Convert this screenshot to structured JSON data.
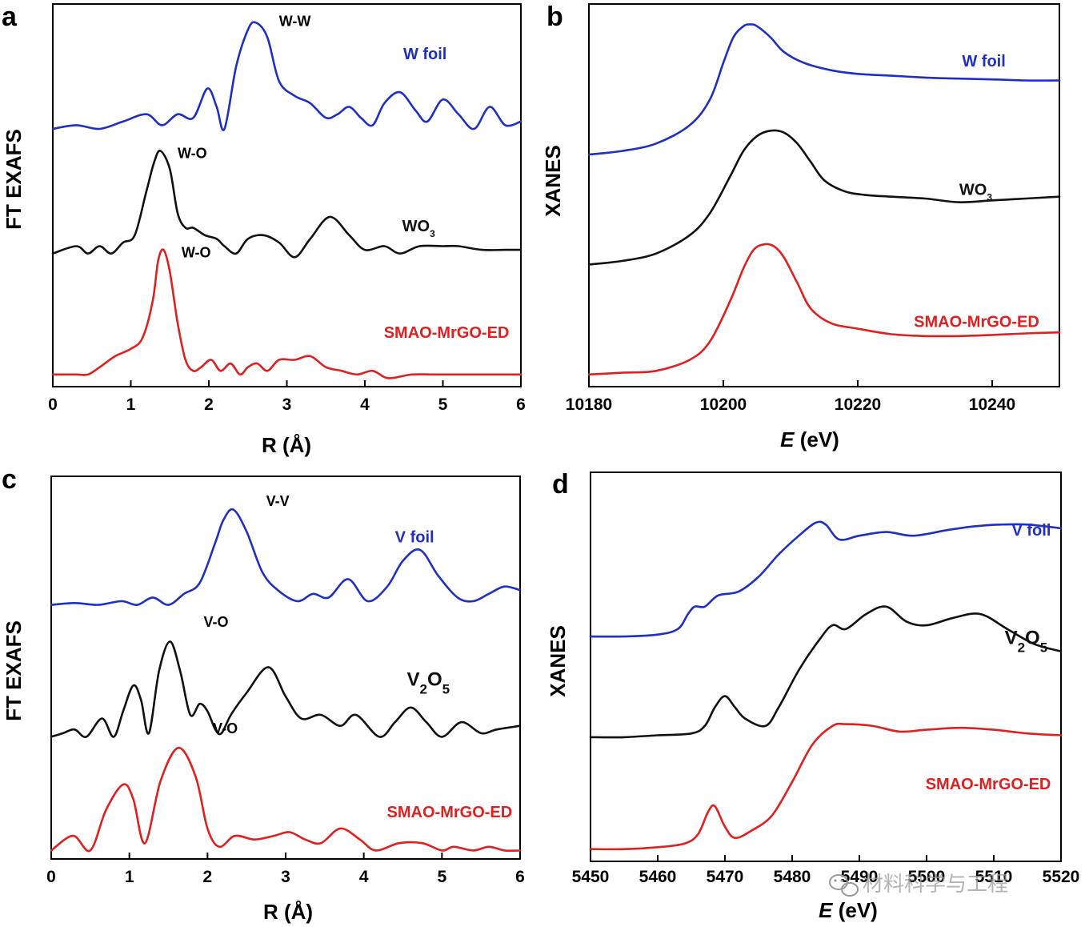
{
  "colors": {
    "blue": "#1f2fc4",
    "black": "#111111",
    "red": "#e02020",
    "axis": "#000000"
  },
  "watermark": {
    "icon": "wechat-icon",
    "text": "材料科学与工程"
  },
  "chart_data": [
    {
      "panel": "a",
      "type": "line",
      "ylabel": "FT EXAFS",
      "xlabel": "R (Å)",
      "xlabel_main": "R (",
      "xlabel_unit": "Å",
      "xlabel_close": ")",
      "xlim": [
        0,
        6
      ],
      "xticks": [
        0,
        1,
        2,
        3,
        4,
        5,
        6
      ],
      "xtick_labels": [
        "0",
        "1",
        "2",
        "3",
        "4",
        "5",
        "6"
      ],
      "y_units": "arbitrary (stacked, offset)",
      "series": [
        {
          "name": "W foil",
          "label": "W foil",
          "color": "#1f2fc4",
          "label_x": 5.05,
          "label_y": 0.88,
          "x": [
            0,
            0.3,
            0.6,
            0.9,
            1.2,
            1.4,
            1.6,
            1.8,
            1.98,
            2.1,
            2.2,
            2.35,
            2.5,
            2.6,
            2.75,
            2.9,
            3.1,
            3.3,
            3.5,
            3.65,
            3.8,
            3.95,
            4.1,
            4.25,
            4.45,
            4.65,
            4.8,
            5.0,
            5.2,
            5.4,
            5.6,
            5.8,
            6.0
          ],
          "y": [
            0.69,
            0.7,
            0.69,
            0.71,
            0.73,
            0.7,
            0.73,
            0.72,
            0.8,
            0.75,
            0.69,
            0.86,
            0.96,
            0.98,
            0.94,
            0.82,
            0.78,
            0.76,
            0.72,
            0.73,
            0.75,
            0.72,
            0.7,
            0.76,
            0.79,
            0.74,
            0.71,
            0.77,
            0.73,
            0.69,
            0.75,
            0.7,
            0.71
          ]
        },
        {
          "name": "WO3",
          "label": "WO",
          "label_sub": "3",
          "color": "#111111",
          "label_x": 4.9,
          "label_y": 0.41,
          "x": [
            0,
            0.3,
            0.45,
            0.6,
            0.75,
            0.9,
            1.05,
            1.2,
            1.3,
            1.38,
            1.5,
            1.6,
            1.7,
            1.8,
            1.95,
            2.1,
            2.2,
            2.35,
            2.5,
            2.7,
            2.9,
            3.1,
            3.3,
            3.55,
            3.8,
            4.0,
            4.25,
            4.45,
            4.7,
            5.0,
            5.2,
            5.5,
            5.8,
            6.0
          ],
          "y": [
            0.35,
            0.37,
            0.35,
            0.37,
            0.35,
            0.38,
            0.4,
            0.52,
            0.6,
            0.63,
            0.58,
            0.46,
            0.42,
            0.42,
            0.4,
            0.39,
            0.37,
            0.35,
            0.39,
            0.4,
            0.38,
            0.34,
            0.39,
            0.45,
            0.4,
            0.36,
            0.37,
            0.35,
            0.37,
            0.37,
            0.37,
            0.36,
            0.36,
            0.36
          ]
        },
        {
          "name": "SMAO-MrGO-ED",
          "label": "SMAO-MrGO-ED",
          "color": "#e02020",
          "label_x": 5.85,
          "label_y": 0.12,
          "x": [
            0,
            0.3,
            0.45,
            0.6,
            0.8,
            1.0,
            1.15,
            1.28,
            1.35,
            1.42,
            1.5,
            1.6,
            1.7,
            1.8,
            1.9,
            2.03,
            2.15,
            2.28,
            2.4,
            2.5,
            2.62,
            2.75,
            2.9,
            3.1,
            3.3,
            3.5,
            3.7,
            3.9,
            4.1,
            4.3,
            4.6,
            4.9,
            5.2,
            5.5,
            5.8,
            6.0
          ],
          "y": [
            0.02,
            0.02,
            0.02,
            0.04,
            0.07,
            0.09,
            0.12,
            0.22,
            0.33,
            0.36,
            0.3,
            0.16,
            0.06,
            0.03,
            0.04,
            0.06,
            0.03,
            0.05,
            0.02,
            0.04,
            0.05,
            0.03,
            0.06,
            0.06,
            0.07,
            0.04,
            0.03,
            0.02,
            0.03,
            0.01,
            0.02,
            0.02,
            0.02,
            0.02,
            0.02,
            0.02
          ]
        }
      ],
      "annotations": [
        {
          "text": "W-W",
          "x": 2.9,
          "y": 0.97
        },
        {
          "text": "W-O",
          "x": 1.6,
          "y": 0.61
        },
        {
          "text": "W-O",
          "x": 1.65,
          "y": 0.34
        }
      ]
    },
    {
      "panel": "b",
      "type": "line",
      "ylabel": "XANES",
      "xlabel": "E (eV)",
      "xlabel_main": "E",
      "xlabel_unit": " (eV)",
      "xlim": [
        10180,
        10250
      ],
      "xticks": [
        10180,
        10200,
        10220,
        10240
      ],
      "xtick_labels": [
        "10180",
        "10200",
        "10220",
        "10240"
      ],
      "y_units": "arbitrary (stacked, offset)",
      "series": [
        {
          "name": "W foil",
          "label": "W foil",
          "color": "#1f2fc4",
          "label_x": 10242,
          "label_y": 0.86,
          "x": [
            10180,
            10185,
            10190,
            10195,
            10198,
            10200,
            10201.5,
            10203,
            10204,
            10205,
            10207,
            10209,
            10212,
            10216,
            10220,
            10225,
            10230,
            10235,
            10240,
            10245,
            10250
          ],
          "y": [
            0.62,
            0.63,
            0.65,
            0.7,
            0.77,
            0.87,
            0.94,
            0.97,
            0.975,
            0.97,
            0.94,
            0.9,
            0.87,
            0.85,
            0.84,
            0.835,
            0.83,
            0.827,
            0.825,
            0.822,
            0.822
          ]
        },
        {
          "name": "WO3",
          "label": "WO",
          "label_sub": "3",
          "color": "#111111",
          "label_x": 10240,
          "label_y": 0.51,
          "x": [
            10180,
            10185,
            10190,
            10195,
            10198,
            10201,
            10203,
            10205,
            10207,
            10209,
            10211,
            10213,
            10215,
            10218,
            10221,
            10225,
            10230,
            10235,
            10240,
            10245,
            10250
          ],
          "y": [
            0.32,
            0.33,
            0.35,
            0.4,
            0.46,
            0.56,
            0.63,
            0.67,
            0.685,
            0.68,
            0.65,
            0.6,
            0.55,
            0.52,
            0.51,
            0.505,
            0.5,
            0.49,
            0.495,
            0.5,
            0.505
          ]
        },
        {
          "name": "SMAO-MrGO-ED",
          "label": "SMAO-MrGO-ED",
          "color": "#e02020",
          "label_x": 10247,
          "label_y": 0.15,
          "x": [
            10180,
            10185,
            10190,
            10195,
            10198,
            10201,
            10203,
            10204.5,
            10206,
            10207.5,
            10209,
            10211,
            10213,
            10216,
            10220,
            10225,
            10230,
            10235,
            10240,
            10245,
            10250
          ],
          "y": [
            0.02,
            0.025,
            0.03,
            0.06,
            0.11,
            0.22,
            0.31,
            0.36,
            0.375,
            0.37,
            0.34,
            0.27,
            0.2,
            0.16,
            0.145,
            0.13,
            0.125,
            0.125,
            0.128,
            0.132,
            0.135
          ]
        }
      ],
      "annotations": []
    },
    {
      "panel": "c",
      "type": "line",
      "ylabel": "FT EXAFS",
      "xlabel": "R (Å)",
      "xlabel_main": "R (",
      "xlabel_unit": "Å",
      "xlabel_close": ")",
      "xlim": [
        0,
        6
      ],
      "xticks": [
        0,
        1,
        2,
        3,
        4,
        5,
        6
      ],
      "xtick_labels": [
        "0",
        "1",
        "2",
        "3",
        "4",
        "5",
        "6"
      ],
      "y_units": "arbitrary (stacked, offset)",
      "series": [
        {
          "name": "V foil",
          "label": "V foil",
          "color": "#1f2fc4",
          "label_x": 4.9,
          "label_y": 0.85,
          "x": [
            0,
            0.3,
            0.6,
            0.9,
            1.1,
            1.3,
            1.5,
            1.7,
            1.9,
            2.1,
            2.2,
            2.33,
            2.5,
            2.7,
            2.9,
            3.15,
            3.35,
            3.55,
            3.8,
            4.05,
            4.3,
            4.5,
            4.72,
            4.95,
            5.2,
            5.4,
            5.6,
            5.8,
            6.0
          ],
          "y": [
            0.68,
            0.685,
            0.68,
            0.69,
            0.68,
            0.7,
            0.68,
            0.71,
            0.74,
            0.85,
            0.91,
            0.94,
            0.88,
            0.77,
            0.72,
            0.69,
            0.71,
            0.7,
            0.75,
            0.69,
            0.73,
            0.8,
            0.83,
            0.76,
            0.7,
            0.69,
            0.71,
            0.73,
            0.72
          ]
        },
        {
          "name": "V2O5",
          "label": "V",
          "label_sub": "2",
          "label_mid": "O",
          "label_sub2": "5",
          "color": "#111111",
          "label_x": 5.1,
          "label_y": 0.46,
          "x": [
            0,
            0.15,
            0.3,
            0.45,
            0.65,
            0.8,
            0.92,
            1.05,
            1.15,
            1.25,
            1.38,
            1.52,
            1.65,
            1.78,
            1.9,
            2.0,
            2.1,
            2.18,
            2.3,
            2.5,
            2.78,
            3.0,
            3.2,
            3.45,
            3.7,
            3.9,
            4.2,
            4.4,
            4.6,
            4.8,
            5.0,
            5.25,
            5.5,
            5.7,
            6.0
          ],
          "y": [
            0.32,
            0.33,
            0.34,
            0.32,
            0.37,
            0.32,
            0.39,
            0.46,
            0.42,
            0.33,
            0.5,
            0.58,
            0.5,
            0.38,
            0.41,
            0.39,
            0.34,
            0.33,
            0.38,
            0.44,
            0.51,
            0.43,
            0.37,
            0.38,
            0.35,
            0.38,
            0.32,
            0.36,
            0.4,
            0.36,
            0.32,
            0.36,
            0.33,
            0.34,
            0.35
          ]
        },
        {
          "name": "SMAO-MrGO-ED",
          "label": "SMAO-MrGO-ED",
          "color": "#e02020",
          "label_x": 5.9,
          "label_y": 0.1,
          "x": [
            0,
            0.28,
            0.5,
            0.7,
            0.92,
            1.05,
            1.2,
            1.4,
            1.63,
            1.85,
            2.0,
            2.15,
            2.35,
            2.6,
            2.85,
            3.05,
            3.25,
            3.45,
            3.7,
            3.95,
            4.15,
            4.45,
            4.75,
            5.0,
            5.15,
            5.4,
            5.6,
            5.8,
            6.0
          ],
          "y": [
            0.01,
            0.05,
            0.01,
            0.12,
            0.19,
            0.15,
            0.03,
            0.2,
            0.29,
            0.21,
            0.07,
            0.02,
            0.05,
            0.04,
            0.05,
            0.06,
            0.04,
            0.03,
            0.07,
            0.04,
            0.01,
            0.03,
            0.03,
            0.01,
            0.02,
            0.01,
            0.02,
            0.01,
            0.01
          ]
        }
      ],
      "annotations": [
        {
          "text": "V-V",
          "x": 2.75,
          "y": 0.95
        },
        {
          "text": "V-O",
          "x": 1.95,
          "y": 0.62
        },
        {
          "text": "V-O",
          "x": 2.07,
          "y": 0.33
        }
      ]
    },
    {
      "panel": "d",
      "type": "line",
      "ylabel": "XANES",
      "xlabel": "E (eV)",
      "xlabel_main": "E",
      "xlabel_unit": " (eV)",
      "xlim": [
        5450,
        5520
      ],
      "xticks": [
        5450,
        5460,
        5470,
        5480,
        5490,
        5500,
        5510,
        5520
      ],
      "xtick_labels": [
        "5450",
        "5460",
        "5470",
        "5480",
        "5490",
        "5500",
        "5510",
        "5520"
      ],
      "y_units": "arbitrary (stacked, offset)",
      "series": [
        {
          "name": "V foil",
          "label": "V foil",
          "color": "#1f2fc4",
          "label_x": 5518.5,
          "label_y": 0.86,
          "x": [
            5450,
            5455,
            5460,
            5463,
            5464.5,
            5465.5,
            5467,
            5469,
            5472,
            5475,
            5478,
            5481,
            5483.5,
            5485,
            5487,
            5490,
            5494,
            5498,
            5503,
            5507,
            5511,
            5515,
            5520
          ],
          "y": [
            0.59,
            0.59,
            0.595,
            0.61,
            0.65,
            0.67,
            0.67,
            0.7,
            0.71,
            0.75,
            0.81,
            0.86,
            0.895,
            0.89,
            0.85,
            0.86,
            0.87,
            0.86,
            0.875,
            0.885,
            0.89,
            0.89,
            0.88
          ]
        },
        {
          "name": "V2O5",
          "label": "V",
          "label_sub": "2",
          "label_mid": "O",
          "label_sub2": "5",
          "color": "#111111",
          "label_x": 5518,
          "label_y": 0.57,
          "x": [
            5450,
            5455,
            5460,
            5465,
            5467,
            5468.5,
            5470,
            5471.5,
            5473,
            5476,
            5478,
            5481,
            5484,
            5486,
            5488,
            5491,
            5494,
            5497,
            5500,
            5504,
            5508,
            5512,
            5516,
            5520
          ],
          "y": [
            0.32,
            0.32,
            0.325,
            0.33,
            0.35,
            0.4,
            0.43,
            0.4,
            0.37,
            0.35,
            0.4,
            0.5,
            0.58,
            0.62,
            0.61,
            0.65,
            0.67,
            0.63,
            0.62,
            0.64,
            0.65,
            0.61,
            0.57,
            0.55
          ]
        },
        {
          "name": "SMAO-MrGO-ED",
          "label": "SMAO-MrGO-ED",
          "color": "#e02020",
          "label_x": 5518.5,
          "label_y": 0.18,
          "x": [
            5450,
            5455,
            5460,
            5464,
            5466,
            5467.5,
            5468.5,
            5470,
            5471.5,
            5474,
            5477,
            5480,
            5483,
            5486,
            5488,
            5492,
            5496,
            5500,
            5505,
            5510,
            5515,
            5520
          ],
          "y": [
            0.02,
            0.02,
            0.025,
            0.035,
            0.06,
            0.12,
            0.135,
            0.08,
            0.05,
            0.07,
            0.11,
            0.2,
            0.3,
            0.35,
            0.355,
            0.35,
            0.335,
            0.34,
            0.345,
            0.34,
            0.33,
            0.325
          ]
        }
      ],
      "annotations": []
    }
  ]
}
